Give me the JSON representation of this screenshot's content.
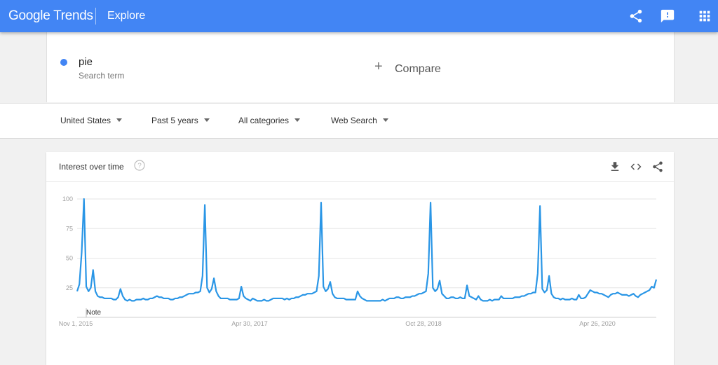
{
  "header": {
    "brand": "Google Trends",
    "title": "Explore"
  },
  "search": {
    "term": "pie",
    "term_sub": "Search term",
    "compare_label": "Compare",
    "term_color": "#4285f4"
  },
  "filters": [
    {
      "label": "United States"
    },
    {
      "label": "Past 5 years"
    },
    {
      "label": "All categories"
    },
    {
      "label": "Web Search"
    }
  ],
  "panel": {
    "title": "Interest over time",
    "note": "Note"
  },
  "colors": {
    "accent": "#4285f4",
    "line": "#2a96e6"
  },
  "chart_data": {
    "type": "line",
    "title": "Interest over time",
    "xlabel": "",
    "ylabel": "",
    "ylim": [
      0,
      100
    ],
    "y_ticks": [
      25,
      50,
      75,
      100
    ],
    "x_tick_labels": [
      "Nov 1, 2015",
      "Apr 30, 2017",
      "Oct 28, 2018",
      "Apr 26, 2020"
    ],
    "grid": true,
    "series": [
      {
        "values": [
          22,
          28,
          55,
          100,
          26,
          22,
          25,
          40,
          22,
          18,
          17,
          17,
          16,
          16,
          16,
          16,
          15,
          15,
          17,
          24,
          18,
          15,
          14,
          15,
          14,
          14,
          15,
          15,
          15,
          16,
          15,
          15,
          16,
          16,
          17,
          18,
          17,
          17,
          16,
          16,
          16,
          15,
          15,
          16,
          16,
          17,
          17,
          18,
          19,
          20,
          20,
          20,
          21,
          21,
          22,
          35,
          95,
          25,
          21,
          24,
          33,
          22,
          18,
          16,
          16,
          16,
          16,
          15,
          15,
          15,
          15,
          16,
          26,
          18,
          16,
          15,
          14,
          16,
          15,
          14,
          14,
          14,
          15,
          14,
          14,
          15,
          16,
          16,
          16,
          16,
          16,
          15,
          16,
          15,
          16,
          16,
          17,
          17,
          18,
          19,
          19,
          20,
          20,
          20,
          21,
          22,
          35,
          97,
          26,
          22,
          24,
          30,
          20,
          17,
          16,
          16,
          16,
          16,
          15,
          15,
          15,
          15,
          15,
          22,
          18,
          16,
          15,
          14,
          14,
          14,
          14,
          14,
          14,
          14,
          15,
          14,
          15,
          16,
          16,
          16,
          17,
          17,
          16,
          16,
          17,
          17,
          17,
          18,
          18,
          19,
          20,
          20,
          21,
          22,
          37,
          97,
          25,
          22,
          24,
          31,
          20,
          18,
          16,
          16,
          17,
          17,
          16,
          16,
          17,
          16,
          16,
          27,
          18,
          17,
          16,
          15,
          18,
          15,
          14,
          14,
          14,
          15,
          14,
          15,
          15,
          15,
          18,
          16,
          16,
          16,
          16,
          16,
          17,
          17,
          17,
          18,
          18,
          19,
          20,
          20,
          21,
          21,
          37,
          94,
          24,
          21,
          23,
          35,
          20,
          17,
          16,
          16,
          15,
          16,
          15,
          15,
          15,
          16,
          15,
          15,
          19,
          16,
          16,
          17,
          20,
          23,
          22,
          21,
          21,
          20,
          20,
          19,
          18,
          17,
          19,
          20,
          20,
          21,
          20,
          19,
          19,
          19,
          18,
          19,
          20,
          18,
          17,
          19,
          20,
          21,
          22,
          23,
          26,
          25,
          32
        ]
      }
    ]
  }
}
